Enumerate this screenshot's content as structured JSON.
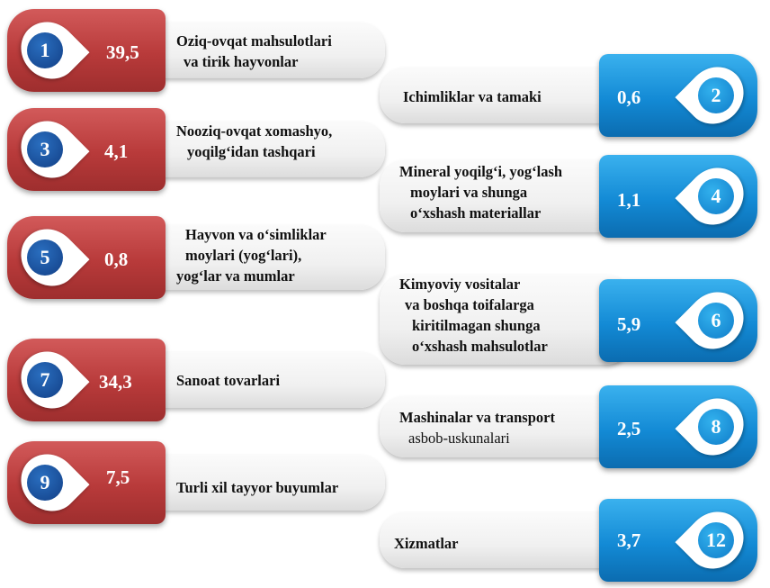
{
  "items": [
    {
      "number": "1",
      "value": "39,5",
      "label_lines": [
        "Oziq-ovqat mahsulotlari",
        "va tirik hayvonlar"
      ]
    },
    {
      "number": "2",
      "value": "0,6",
      "label_lines": [
        "Ichimliklar va tamaki"
      ]
    },
    {
      "number": "3",
      "value": "4,1",
      "label_lines": [
        "Nooziq-ovqat xomashyo,",
        "yoqilg‘idan tashqari"
      ]
    },
    {
      "number": "4",
      "value": "1,1",
      "label_lines": [
        "Mineral yoqilg‘i, yog‘lash",
        "moylari va shunga",
        "o‘xshash materiallar"
      ]
    },
    {
      "number": "5",
      "value": "0,8",
      "label_lines": [
        "Hayvon va o‘simliklar",
        "moylari (yog‘lari),",
        "yog‘lar va mumlar"
      ]
    },
    {
      "number": "6",
      "value": "5,9",
      "label_lines": [
        "Kimyoviy vositalar",
        "va boshqa toifalarga",
        "kiritilmagan shunga",
        "o‘xshash mahsulotlar"
      ]
    },
    {
      "number": "7",
      "value": "34,3",
      "label_lines": [
        "Sanoat tovarlari"
      ]
    },
    {
      "number": "8",
      "value": "2,5",
      "label_lines": [
        "Mashinalar va transport",
        "asbob-uskunalari"
      ]
    },
    {
      "number": "9",
      "value": "7,5",
      "label_lines": [
        "Turli xil tayyor buyumlar"
      ]
    },
    {
      "number": "12",
      "value": "3,7",
      "label_lines": [
        "Xizmatlar"
      ]
    }
  ],
  "colors": {
    "left_badge": "#b83a3a",
    "right_badge": "#138ad5",
    "left_circle": "#1a4f9c",
    "right_circle": "#1a8fd8"
  }
}
